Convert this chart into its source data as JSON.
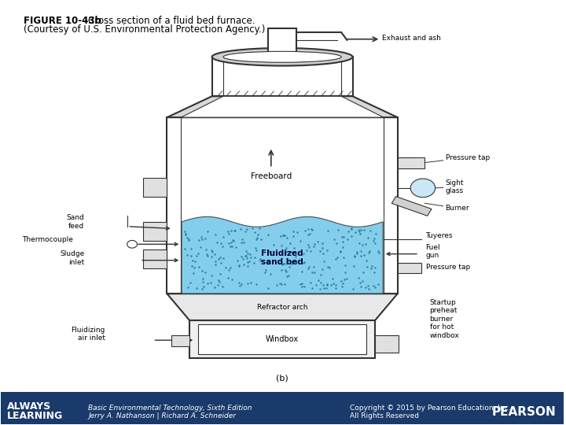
{
  "title_bold": "FIGURE 10-43b",
  "title_normal": "  Cross section of a fluid bed furnace.",
  "subtitle": "(Courtesy of U.S. Environmental Protection Agency.)",
  "figure_label": "(b)",
  "footer_left1": "Basic Environmental Technology, Sixth Edition",
  "footer_left2": "Jerry A. Nathanson | Richard A. Schneider",
  "footer_right1": "Copyright © 2015 by Pearson Education, Inc.",
  "footer_right2": "All Rights Reserved",
  "footer_bg": "#1a3a6b",
  "footer_text_color": "#ffffff",
  "bg_color": "#ffffff",
  "line_color": "#333333",
  "sand_bed_color": "#6ec6e8"
}
